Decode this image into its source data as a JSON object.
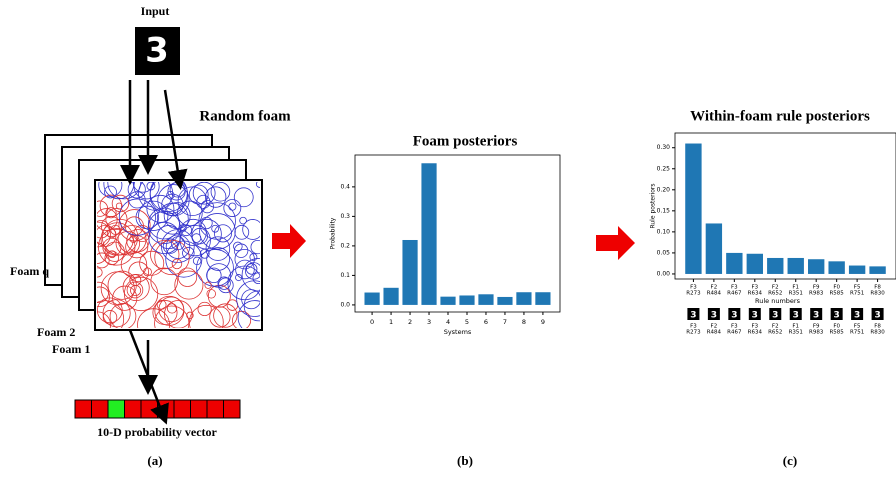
{
  "figure": {
    "input_label": "Input",
    "foam_title": "Random foam",
    "foam_labels": [
      "Foam q",
      "Foam 2",
      "Foam 1"
    ],
    "vector_label": "10-D probability vector",
    "panel_labels": [
      "(a)",
      "(b)",
      "(c)"
    ]
  },
  "chart_data": [
    {
      "type": "bar",
      "title": "Foam posteriors",
      "x_label": "Systems",
      "y_label": "Probability",
      "categories": [
        "0",
        "1",
        "2",
        "3",
        "4",
        "5",
        "6",
        "7",
        "8",
        "9"
      ],
      "values": [
        0.042,
        0.058,
        0.22,
        0.48,
        0.028,
        0.032,
        0.036,
        0.027,
        0.043,
        0.043
      ],
      "color": "#1f77b4",
      "xlim": [
        -0.9,
        9.9
      ],
      "ylim": [
        -0.024,
        0.508
      ],
      "yticks": [
        {
          "value": 0,
          "label": "0.0"
        },
        0.1,
        0.2,
        0.3,
        0.4
      ]
    },
    {
      "type": "bar",
      "title": "Within-foam rule posteriors",
      "x_label": "Rule numbers",
      "y_label": "Rule posteriors",
      "categories": [
        [
          "F3",
          "R273"
        ],
        [
          "F2",
          "R484"
        ],
        [
          "F3",
          "R467"
        ],
        [
          "F3",
          "R634"
        ],
        [
          "F2",
          "R652"
        ],
        [
          "F1",
          "R351"
        ],
        [
          "F9",
          "R983"
        ],
        [
          "F0",
          "R585"
        ],
        [
          "F5",
          "R751"
        ],
        [
          "F8",
          "R830"
        ]
      ],
      "values": [
        0.31,
        0.12,
        0.05,
        0.048,
        0.038,
        0.038,
        0.035,
        0.03,
        0.02,
        0.018
      ],
      "color": "#1f77b4",
      "xlim": [
        -0.9,
        9.9
      ],
      "ylim": [
        -0.012,
        0.335
      ],
      "yticks": [
        {
          "value": 0,
          "label": "0.00"
        },
        {
          "value": 0.05,
          "label": "0.05"
        },
        {
          "value": 0.1,
          "label": "0.10"
        },
        {
          "value": 0.15,
          "label": "0.15"
        },
        {
          "value": 0.2,
          "label": "0.20"
        },
        {
          "value": 0.25,
          "label": "0.25"
        },
        {
          "value": 0.3,
          "label": "0.30"
        }
      ]
    }
  ]
}
